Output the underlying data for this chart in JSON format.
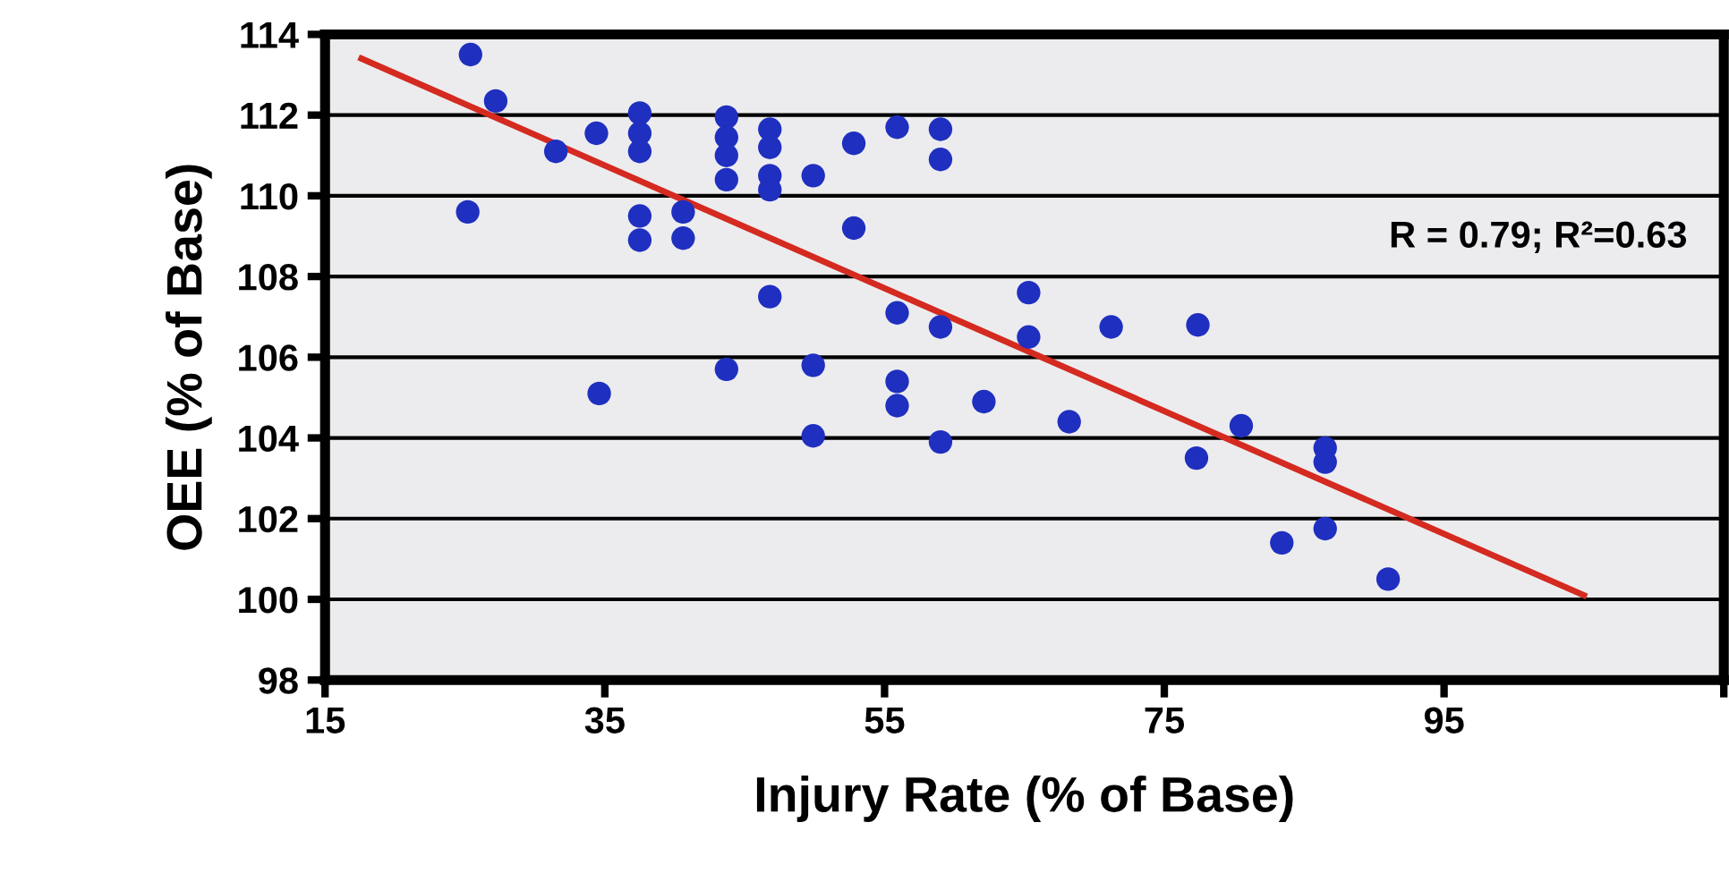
{
  "chart_data": {
    "type": "scatter",
    "xlabel": "Injury Rate (% of Base)",
    "ylabel": "OEE (% of Base)",
    "xlim": [
      15,
      115
    ],
    "xticks": [
      15,
      35,
      55,
      75,
      95,
      {
        "value": 115,
        "label": null
      }
    ],
    "ylim": [
      98,
      114
    ],
    "yticks": [
      98,
      100,
      102,
      104,
      106,
      108,
      110,
      112,
      114
    ],
    "grid": "y",
    "marker": "circle",
    "annotations": [
      "R = 0.79; R²=0.63"
    ],
    "series": [
      {
        "color": "#1f2fbf",
        "x": [
          25.4,
          27.2,
          25.2,
          31.5,
          34.4,
          34.6,
          37.5,
          37.5,
          37.5,
          37.5,
          37.5,
          40.6,
          40.6,
          43.7,
          43.7,
          43.7,
          43.7,
          43.7,
          46.8,
          46.8,
          46.8,
          46.8,
          46.8,
          49.9,
          49.9,
          49.9,
          52.8,
          52.8,
          55.9,
          55.9,
          55.9,
          55.9,
          59.0,
          59.0,
          59.0,
          59.0,
          62.1,
          65.3,
          65.3,
          71.2,
          77.4,
          68.2,
          80.5,
          77.3,
          86.5,
          86.5,
          86.5,
          83.4,
          91.0
        ],
        "values": [
          113.5,
          112.35,
          109.6,
          111.1,
          111.55,
          105.1,
          112.05,
          111.55,
          111.1,
          109.5,
          108.9,
          109.6,
          108.95,
          111.95,
          111.45,
          111.0,
          110.4,
          105.7,
          111.65,
          111.2,
          110.5,
          110.15,
          107.5,
          110.5,
          105.8,
          104.05,
          111.3,
          109.2,
          111.7,
          107.1,
          105.4,
          104.8,
          111.65,
          110.9,
          106.75,
          103.9,
          104.9,
          107.6,
          106.5,
          106.75,
          106.8,
          104.4,
          104.3,
          103.5,
          103.75,
          103.4,
          101.75,
          101.4,
          100.5
        ]
      },
      {
        "type": "line",
        "color": "#d42a20",
        "x": [
          17.6,
          105.0
        ],
        "values": [
          113.4,
          100.1
        ],
        "line_style": "solid",
        "marker": "none"
      }
    ]
  }
}
